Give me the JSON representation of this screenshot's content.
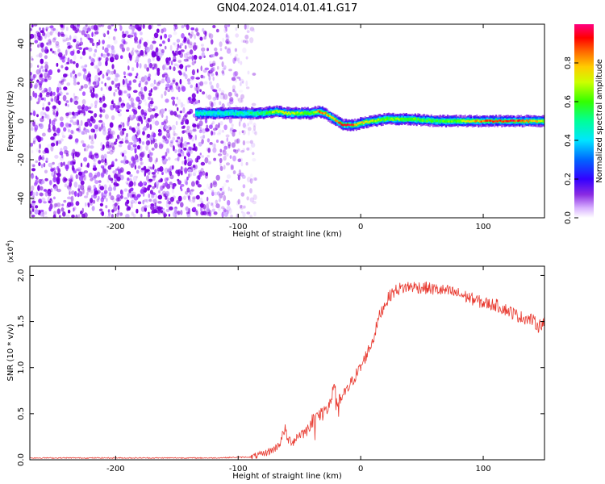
{
  "title": "GN04.2024.014.01.41.G17",
  "chart_data": [
    {
      "type": "heatmap",
      "xlabel": "Height of straight line (km)",
      "ylabel": "Frequency (Hz)",
      "xlim": [
        -270,
        150
      ],
      "ylim": [
        -50,
        50
      ],
      "xticks": [
        -200,
        -100,
        0,
        100
      ],
      "yticks": [
        -40,
        -20,
        0,
        20,
        40
      ],
      "colorbar": {
        "label": "Normalized spectral amplitude",
        "range": [
          0,
          1
        ],
        "ticks": [
          0.0,
          0.2,
          0.4,
          0.6,
          0.8
        ],
        "colormap": [
          "#ffffff",
          "#c080ff",
          "#7a00e0",
          "#0000ff",
          "#00c8ff",
          "#00ff80",
          "#40ff00",
          "#ffff00",
          "#ff8000",
          "#ff0000",
          "#ff0080"
        ]
      },
      "ridge": {
        "x": [
          -135,
          -120,
          -100,
          -80,
          -70,
          -60,
          -50,
          -40,
          -35,
          -30,
          -25,
          -20,
          -15,
          -10,
          -5,
          0,
          10,
          20,
          30,
          40,
          60,
          80,
          100,
          120,
          140,
          150
        ],
        "freq": [
          4,
          4,
          4,
          4,
          5,
          4,
          4,
          4,
          5,
          4,
          2,
          0,
          -2,
          -2,
          -2,
          -1,
          0,
          1,
          1,
          1,
          0,
          0,
          0,
          0,
          0,
          0
        ],
        "amplitude": [
          0.45,
          0.45,
          0.45,
          0.5,
          0.7,
          0.75,
          0.6,
          0.65,
          0.85,
          0.8,
          0.75,
          0.8,
          0.95,
          0.95,
          0.85,
          0.75,
          0.7,
          0.6,
          0.65,
          0.6,
          0.55,
          0.65,
          0.85,
          0.95,
          0.8,
          0.7
        ]
      },
      "noise_region_x": [
        -270,
        -85
      ]
    },
    {
      "type": "line",
      "xlabel": "Height of straight line (km)",
      "ylabel": "SNR (10 * v/v)",
      "y_scale_label": "(x10",
      "y_scale_exp": "4",
      "y_scale_close": ")",
      "xlim": [
        -270,
        150
      ],
      "ylim": [
        0,
        2.1
      ],
      "xticks": [
        -200,
        -100,
        0,
        100
      ],
      "yticks": [
        "0.0",
        "0.5",
        "1.0",
        "1.5",
        "2.0"
      ],
      "line_color": "#e8392f",
      "series": [
        {
          "x": [
            -270,
            -200,
            -120,
            -90,
            -80,
            -70,
            -65,
            -62,
            -60,
            -55,
            -50,
            -45,
            -40,
            -35,
            -30,
            -25,
            -22,
            -20,
            -15,
            -10,
            -5,
            0,
            5,
            10,
            15,
            20,
            25,
            30,
            40,
            50,
            60,
            70,
            80,
            90,
            100,
            110,
            120,
            130,
            140,
            145,
            150
          ],
          "y": [
            0.02,
            0.02,
            0.02,
            0.03,
            0.06,
            0.12,
            0.2,
            0.35,
            0.22,
            0.2,
            0.28,
            0.3,
            0.42,
            0.48,
            0.52,
            0.58,
            0.88,
            0.6,
            0.68,
            0.78,
            0.9,
            1.0,
            1.15,
            1.3,
            1.55,
            1.7,
            1.8,
            1.85,
            1.88,
            1.87,
            1.85,
            1.83,
            1.8,
            1.75,
            1.7,
            1.68,
            1.62,
            1.55,
            1.52,
            1.45,
            1.5
          ]
        }
      ]
    }
  ]
}
